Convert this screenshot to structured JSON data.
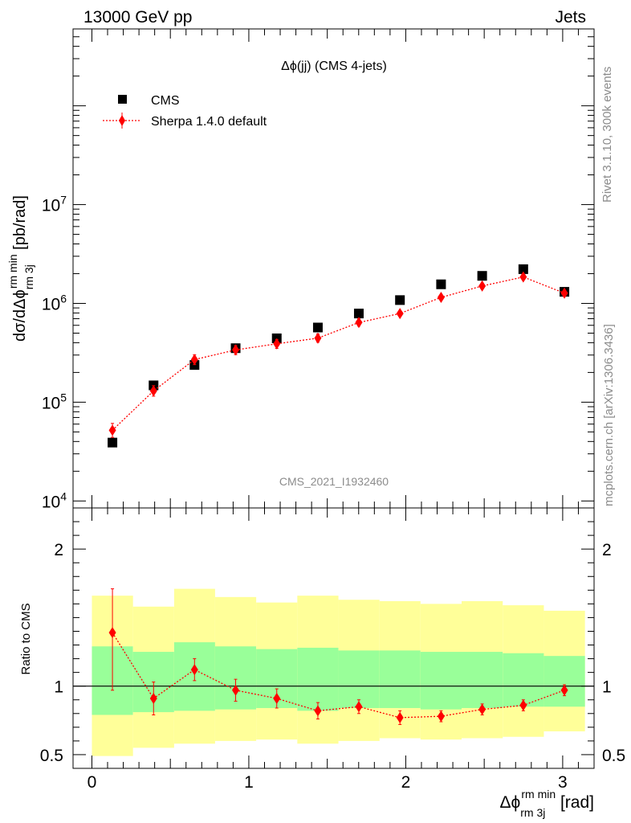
{
  "header": {
    "energy_label": "13000 GeV pp",
    "category_label": "Jets"
  },
  "side_labels": {
    "rivet": "Rivet 3.1.10,  300k events",
    "mcplots": "mcplots.cern.ch [arXiv:1306.3436]"
  },
  "chart_data": [
    {
      "type": "scatter",
      "title": "Δϕ(jj) (CMS 4-jets)",
      "watermark": "CMS_2021_I1932460",
      "ylabel": {
        "main": "dσ/dΔϕ",
        "sup": "rm min",
        "sub": "rm 3j",
        "unit": " [pb/rad]"
      },
      "yscale": "log",
      "ylim": [
        8500,
        600000000
      ],
      "xlim": [
        -0.12,
        3.2
      ],
      "ytick_labels": [
        {
          "value": 10000,
          "base": "10",
          "exp": "4"
        },
        {
          "value": 100000,
          "base": "10",
          "exp": "5"
        },
        {
          "value": 1000000,
          "base": "10",
          "exp": "6"
        },
        {
          "value": 10000000,
          "base": "10",
          "exp": "7"
        }
      ],
      "legend": {
        "position": "top-left",
        "entries": [
          "CMS",
          "Sherpa 1.4.0 default"
        ]
      },
      "x": [
        0.131,
        0.393,
        0.654,
        0.916,
        1.178,
        1.44,
        1.701,
        1.963,
        2.225,
        2.487,
        2.749,
        3.011
      ],
      "series": [
        {
          "name": "CMS",
          "marker": "square",
          "color": "#000000",
          "values": [
            39000,
            148000,
            238000,
            352000,
            443000,
            570000,
            790000,
            1080000,
            1560000,
            1900000,
            2220000,
            1310000
          ]
        },
        {
          "name": "Sherpa 1.4.0 default",
          "marker": "diamond",
          "color": "#ff0000",
          "line": "dotted",
          "values": [
            52000,
            130000,
            270000,
            338000,
            390000,
            445000,
            640000,
            790000,
            1150000,
            1500000,
            1850000,
            1270000
          ],
          "err_low": [
            8000,
            15000,
            30000,
            35000,
            40000,
            40000,
            50000,
            40000,
            60000,
            70000,
            80000,
            80000
          ],
          "err_high": [
            9000,
            17000,
            32000,
            37000,
            42000,
            45000,
            55000,
            45000,
            65000,
            75000,
            90000,
            85000
          ]
        }
      ]
    },
    {
      "type": "scatter",
      "ylabel": "Ratio to CMS",
      "xlabel": {
        "main": "Δϕ",
        "sup": "rm min",
        "sub": "rm 3j",
        "unit": " [rad]"
      },
      "ylim": [
        0.4,
        2.3
      ],
      "xlim": [
        -0.12,
        3.2
      ],
      "ytick_labels": [
        {
          "value": 0.5,
          "label": "0.5"
        },
        {
          "value": 1,
          "label": "1"
        },
        {
          "value": 2,
          "label": "2"
        }
      ],
      "xtick_labels": [
        {
          "value": 0,
          "label": "0"
        },
        {
          "value": 1,
          "label": "1"
        },
        {
          "value": 2,
          "label": "2"
        },
        {
          "value": 3,
          "label": "3"
        }
      ],
      "bin_edges": [
        0.0,
        0.262,
        0.524,
        0.785,
        1.047,
        1.309,
        1.571,
        1.833,
        2.094,
        2.356,
        2.618,
        2.88,
        3.142
      ],
      "band_inner": {
        "color": "#99ff99",
        "low": [
          0.79,
          0.81,
          0.82,
          0.83,
          0.84,
          0.82,
          0.84,
          0.84,
          0.83,
          0.84,
          0.85,
          0.85
        ],
        "high": [
          1.29,
          1.25,
          1.32,
          1.29,
          1.27,
          1.28,
          1.26,
          1.26,
          1.25,
          1.25,
          1.24,
          1.22
        ]
      },
      "band_outer": {
        "color": "#ffff99",
        "low": [
          0.49,
          0.55,
          0.58,
          0.6,
          0.61,
          0.58,
          0.6,
          0.62,
          0.61,
          0.62,
          0.63,
          0.67
        ],
        "high": [
          1.66,
          1.58,
          1.71,
          1.65,
          1.61,
          1.66,
          1.63,
          1.62,
          1.6,
          1.62,
          1.59,
          1.55
        ]
      },
      "reference_line": 1,
      "series": [
        {
          "name": "Sherpa 1.4.0 default",
          "marker": "diamond",
          "color": "#ff0000",
          "line": "dotted",
          "values": [
            1.39,
            0.91,
            1.12,
            0.97,
            0.91,
            0.82,
            0.85,
            0.77,
            0.78,
            0.83,
            0.86,
            0.97
          ],
          "err_low": [
            0.42,
            0.12,
            0.08,
            0.08,
            0.07,
            0.06,
            0.05,
            0.05,
            0.04,
            0.04,
            0.04,
            0.04
          ],
          "err_high": [
            0.32,
            0.12,
            0.08,
            0.08,
            0.07,
            0.06,
            0.05,
            0.05,
            0.04,
            0.04,
            0.04,
            0.04
          ]
        }
      ]
    }
  ]
}
